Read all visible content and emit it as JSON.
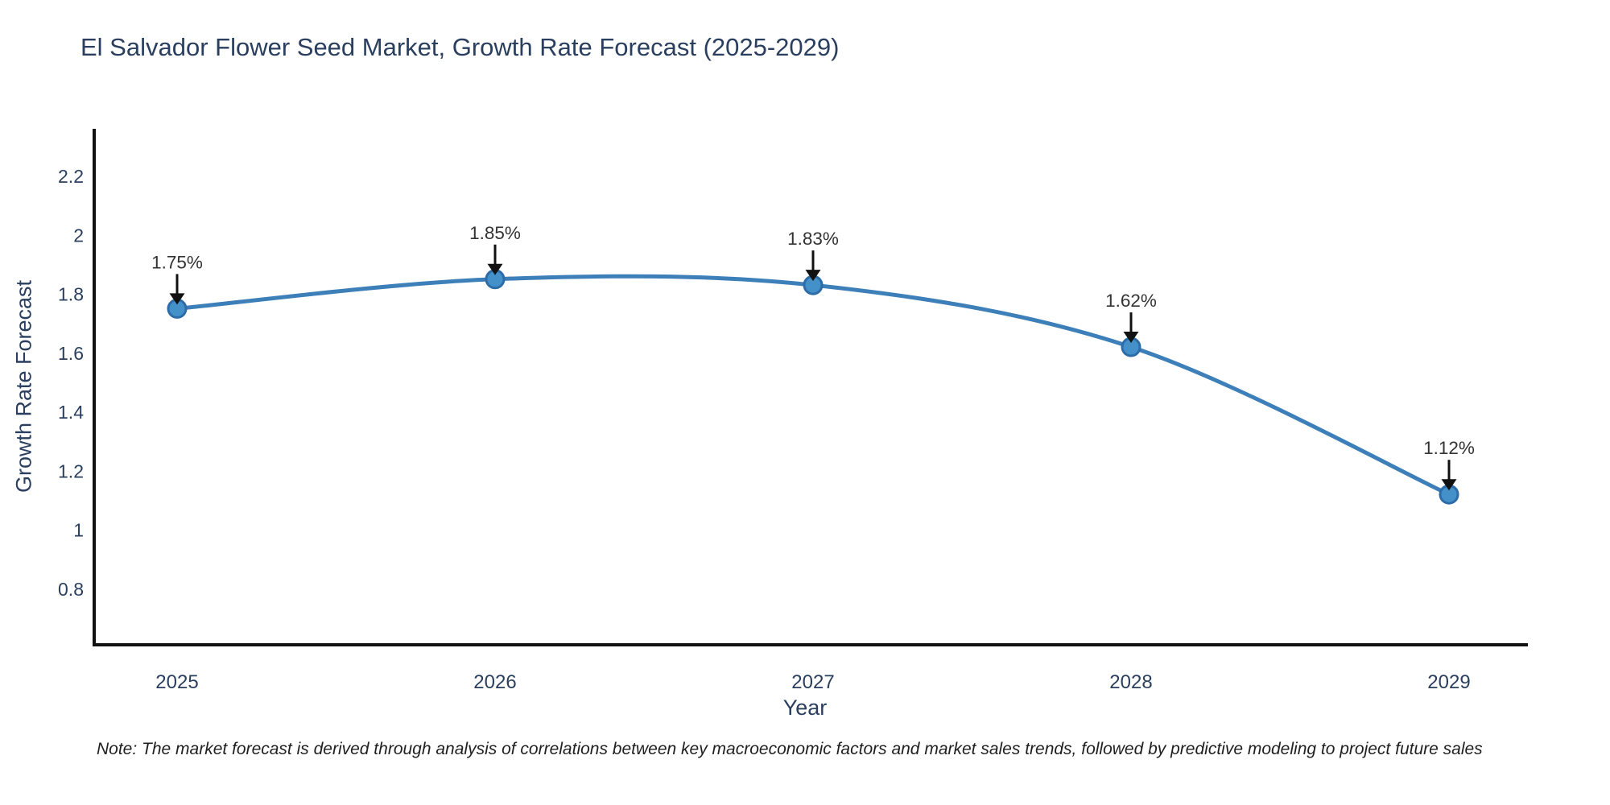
{
  "page": {
    "background": "#ffffff"
  },
  "chart_data": {
    "type": "line",
    "title": "El Salvador Flower Seed Market, Growth Rate Forecast (2025-2029)",
    "xlabel": "Year",
    "ylabel": "Growth Rate Forecast",
    "categories": [
      "2025",
      "2026",
      "2027",
      "2028",
      "2029"
    ],
    "series": [
      {
        "name": "Growth Rate Forecast",
        "values": [
          1.75,
          1.85,
          1.83,
          1.62,
          1.12
        ]
      }
    ],
    "point_labels": [
      "1.75%",
      "1.85%",
      "1.83%",
      "1.62%",
      "1.12%"
    ],
    "ylim": [
      0.61,
      2.36
    ],
    "yticks": [
      0.8,
      1.0,
      1.2,
      1.4,
      1.6,
      1.8,
      2.0,
      2.2
    ],
    "ytick_labels": [
      "0.8",
      "1",
      "1.2",
      "1.4",
      "1.6",
      "1.8",
      "2",
      "2.2"
    ],
    "grid": false,
    "legend_position": "none",
    "line_shape": "spline",
    "colors": {
      "line": "#3d7fb8",
      "marker_fill": "#4491c9",
      "marker_edge": "#2e6ca8",
      "axis_line": "#111111",
      "title_text": "#2a3f5f",
      "tick_text": "#2a3f5f",
      "annotation_text": "#333333",
      "annotation_arrow": "#111111"
    }
  },
  "note": "Note: The market forecast is derived through analysis of correlations between key macroeconomic factors and market sales trends, followed by predictive modeling to project future sales"
}
